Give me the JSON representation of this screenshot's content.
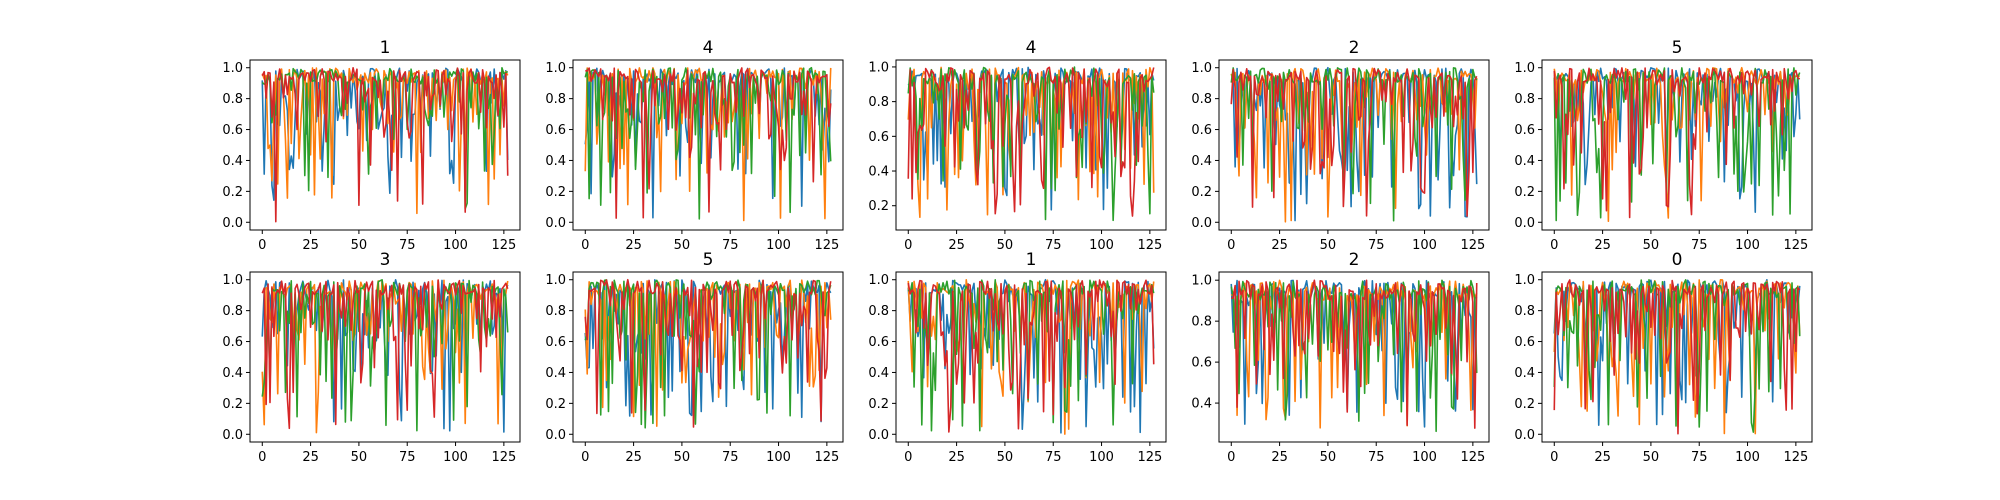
{
  "figure": {
    "background": "#ffffff"
  },
  "chart_data": [
    {
      "type": "line",
      "title": "1",
      "xlim": [
        -6.35,
        133.35
      ],
      "ylim": [
        -0.05,
        1.05
      ],
      "xticks": [
        0,
        25,
        50,
        75,
        100,
        125
      ],
      "yticks": [
        0.0,
        0.2,
        0.4,
        0.6,
        0.8,
        1.0
      ],
      "series": [
        {
          "color": "#1f77b4",
          "seed": 11
        },
        {
          "color": "#ff7f0e",
          "seed": 12
        },
        {
          "color": "#2ca02c",
          "seed": 13
        },
        {
          "color": "#d62728",
          "seed": 14
        }
      ]
    },
    {
      "type": "line",
      "title": "4",
      "xlim": [
        -6.35,
        133.35
      ],
      "ylim": [
        -0.05,
        1.05
      ],
      "xticks": [
        0,
        25,
        50,
        75,
        100,
        125
      ],
      "yticks": [
        0.0,
        0.2,
        0.4,
        0.6,
        0.8,
        1.0
      ],
      "series": [
        {
          "color": "#1f77b4",
          "seed": 21
        },
        {
          "color": "#ff7f0e",
          "seed": 22
        },
        {
          "color": "#2ca02c",
          "seed": 23
        },
        {
          "color": "#d62728",
          "seed": 24
        }
      ]
    },
    {
      "type": "line",
      "title": "4",
      "xlim": [
        -6.35,
        133.35
      ],
      "ylim": [
        0.06,
        1.04
      ],
      "xticks": [
        0,
        25,
        50,
        75,
        100,
        125
      ],
      "yticks": [
        0.2,
        0.4,
        0.6,
        0.8,
        1.0
      ],
      "series": [
        {
          "color": "#1f77b4",
          "seed": 31
        },
        {
          "color": "#ff7f0e",
          "seed": 32
        },
        {
          "color": "#2ca02c",
          "seed": 33
        },
        {
          "color": "#d62728",
          "seed": 34
        }
      ]
    },
    {
      "type": "line",
      "title": "2",
      "xlim": [
        -6.35,
        133.35
      ],
      "ylim": [
        -0.05,
        1.05
      ],
      "xticks": [
        0,
        25,
        50,
        75,
        100,
        125
      ],
      "yticks": [
        0.0,
        0.2,
        0.4,
        0.6,
        0.8,
        1.0
      ],
      "series": [
        {
          "color": "#1f77b4",
          "seed": 41
        },
        {
          "color": "#ff7f0e",
          "seed": 42
        },
        {
          "color": "#2ca02c",
          "seed": 43
        },
        {
          "color": "#d62728",
          "seed": 44
        }
      ]
    },
    {
      "type": "line",
      "title": "5",
      "xlim": [
        -6.35,
        133.35
      ],
      "ylim": [
        -0.05,
        1.05
      ],
      "xticks": [
        0,
        25,
        50,
        75,
        100,
        125
      ],
      "yticks": [
        0.0,
        0.2,
        0.4,
        0.6,
        0.8,
        1.0
      ],
      "series": [
        {
          "color": "#1f77b4",
          "seed": 51
        },
        {
          "color": "#ff7f0e",
          "seed": 52
        },
        {
          "color": "#2ca02c",
          "seed": 53
        },
        {
          "color": "#d62728",
          "seed": 54
        }
      ]
    },
    {
      "type": "line",
      "title": "3",
      "xlim": [
        -6.35,
        133.35
      ],
      "ylim": [
        -0.05,
        1.05
      ],
      "xticks": [
        0,
        25,
        50,
        75,
        100,
        125
      ],
      "yticks": [
        0.0,
        0.2,
        0.4,
        0.6,
        0.8,
        1.0
      ],
      "series": [
        {
          "color": "#1f77b4",
          "seed": 61
        },
        {
          "color": "#ff7f0e",
          "seed": 62
        },
        {
          "color": "#2ca02c",
          "seed": 63
        },
        {
          "color": "#d62728",
          "seed": 64
        }
      ]
    },
    {
      "type": "line",
      "title": "5",
      "xlim": [
        -6.35,
        133.35
      ],
      "ylim": [
        -0.05,
        1.05
      ],
      "xticks": [
        0,
        25,
        50,
        75,
        100,
        125
      ],
      "yticks": [
        0.0,
        0.2,
        0.4,
        0.6,
        0.8,
        1.0
      ],
      "series": [
        {
          "color": "#1f77b4",
          "seed": 71
        },
        {
          "color": "#ff7f0e",
          "seed": 72
        },
        {
          "color": "#2ca02c",
          "seed": 73
        },
        {
          "color": "#d62728",
          "seed": 74
        }
      ]
    },
    {
      "type": "line",
      "title": "1",
      "xlim": [
        -6.35,
        133.35
      ],
      "ylim": [
        -0.05,
        1.05
      ],
      "xticks": [
        0,
        25,
        50,
        75,
        100,
        125
      ],
      "yticks": [
        0.0,
        0.2,
        0.4,
        0.6,
        0.8,
        1.0
      ],
      "series": [
        {
          "color": "#1f77b4",
          "seed": 81
        },
        {
          "color": "#ff7f0e",
          "seed": 82
        },
        {
          "color": "#2ca02c",
          "seed": 83
        },
        {
          "color": "#d62728",
          "seed": 84
        }
      ]
    },
    {
      "type": "line",
      "title": "2",
      "xlim": [
        -6.35,
        133.35
      ],
      "ylim": [
        0.21,
        1.04
      ],
      "xticks": [
        0,
        25,
        50,
        75,
        100,
        125
      ],
      "yticks": [
        0.4,
        0.6,
        0.8,
        1.0
      ],
      "series": [
        {
          "color": "#1f77b4",
          "seed": 91
        },
        {
          "color": "#ff7f0e",
          "seed": 92
        },
        {
          "color": "#2ca02c",
          "seed": 93
        },
        {
          "color": "#d62728",
          "seed": 94
        }
      ]
    },
    {
      "type": "line",
      "title": "0",
      "xlim": [
        -6.35,
        133.35
      ],
      "ylim": [
        -0.05,
        1.05
      ],
      "xticks": [
        0,
        25,
        50,
        75,
        100,
        125
      ],
      "yticks": [
        0.0,
        0.2,
        0.4,
        0.6,
        0.8,
        1.0
      ],
      "series": [
        {
          "color": "#1f77b4",
          "seed": 101
        },
        {
          "color": "#ff7f0e",
          "seed": 102
        },
        {
          "color": "#2ca02c",
          "seed": 103
        },
        {
          "color": "#d62728",
          "seed": 104
        }
      ]
    }
  ]
}
